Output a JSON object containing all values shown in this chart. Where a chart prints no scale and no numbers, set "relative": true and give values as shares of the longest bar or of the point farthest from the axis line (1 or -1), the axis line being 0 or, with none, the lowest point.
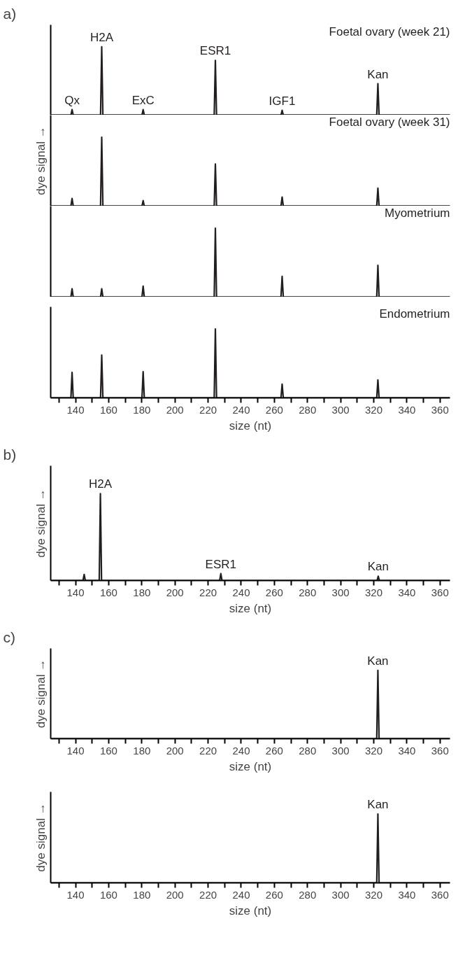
{
  "chart_data": [
    {
      "type": "line",
      "relative": true,
      "title": "Foetal ovary (week 21)",
      "tick_labels": false,
      "xlim": [
        125,
        366
      ],
      "annotations": [
        "a)",
        {
          "text": "Qx",
          "x": 137.9,
          "y": 0.08
        },
        {
          "text": "H2A",
          "x": 155.8,
          "y": 1
        },
        {
          "text": "ExC",
          "x": 180.8,
          "y": 0.08
        },
        {
          "text": "ESR1",
          "x": 224.4,
          "y": 0.8
        },
        {
          "text": "IGF1",
          "x": 264.7,
          "y": 0.07
        },
        {
          "text": "Kan",
          "x": 322.5,
          "y": 0.46
        }
      ],
      "series": [
        {
          "color": "#231f20",
          "x": [
            125,
            137.2,
            137.9,
            138.6,
            155.1,
            155.8,
            156.5,
            180.1,
            180.8,
            181.5,
            223.7,
            224.4,
            225.1,
            264.0,
            264.7,
            265.4,
            321.8,
            322.5,
            323.2,
            366
          ],
          "values": [
            0,
            0,
            0.08,
            0,
            0,
            1,
            0,
            0,
            0.08,
            0,
            0,
            0.8,
            0,
            0,
            0.07,
            0,
            0,
            0.46,
            0,
            0
          ]
        }
      ]
    },
    {
      "type": "line",
      "relative": true,
      "title": "Foetal ovary (week 31)",
      "ylabel": "dye signal →",
      "tick_labels": false,
      "xlim": [
        125,
        366
      ],
      "series": [
        {
          "color": "#231f20",
          "x": [
            125,
            137.2,
            137.9,
            138.6,
            155.1,
            155.8,
            156.5,
            180.1,
            180.8,
            181.5,
            223.7,
            224.4,
            225.1,
            264.0,
            264.7,
            265.4,
            321.8,
            322.5,
            323.2,
            366
          ],
          "values": [
            0,
            0,
            0.11,
            0,
            0,
            1,
            0,
            0,
            0.08,
            0,
            0,
            0.61,
            0,
            0,
            0.13,
            0,
            0,
            0.26,
            0,
            0
          ]
        }
      ]
    },
    {
      "type": "line",
      "relative": true,
      "title": "Myometrium",
      "tick_labels": false,
      "xlim": [
        125,
        366
      ],
      "series": [
        {
          "color": "#231f20",
          "x": [
            125,
            137.2,
            137.9,
            138.6,
            155.1,
            155.8,
            156.5,
            180.1,
            180.8,
            181.5,
            223.7,
            224.4,
            225.1,
            264.0,
            264.7,
            265.4,
            321.8,
            322.5,
            323.2,
            366
          ],
          "values": [
            0,
            0,
            0.12,
            0,
            0,
            0.12,
            0,
            0,
            0.16,
            0,
            0,
            1,
            0,
            0,
            0.3,
            0,
            0,
            0.46,
            0,
            0
          ]
        }
      ]
    },
    {
      "type": "line",
      "relative": true,
      "title": "Endometrium",
      "xlabel": "size (nt)",
      "tick_labels": "x",
      "xlim": [
        125,
        366
      ],
      "xticks": [
        {
          "value": 130,
          "label": null
        },
        140,
        {
          "value": 150,
          "label": null
        },
        160,
        {
          "value": 170,
          "label": null
        },
        180,
        {
          "value": 190,
          "label": null
        },
        200,
        {
          "value": 210,
          "label": null
        },
        220,
        {
          "value": 230,
          "label": null
        },
        240,
        {
          "value": 250,
          "label": null
        },
        260,
        {
          "value": 270,
          "label": null
        },
        280,
        {
          "value": 290,
          "label": null
        },
        300,
        {
          "value": 310,
          "label": null
        },
        320,
        {
          "value": 330,
          "label": null
        },
        340,
        {
          "value": 350,
          "label": null
        },
        360
      ],
      "series": [
        {
          "color": "#231f20",
          "x": [
            125,
            137.2,
            137.9,
            138.6,
            155.1,
            155.8,
            156.5,
            180.1,
            180.8,
            181.5,
            223.7,
            224.4,
            225.1,
            264.0,
            264.7,
            265.4,
            321.8,
            322.5,
            323.2,
            366
          ],
          "values": [
            0,
            0,
            0.37,
            0,
            0,
            0.62,
            0,
            0,
            0.38,
            0,
            0,
            1,
            0,
            0,
            0.2,
            0,
            0,
            0.26,
            0,
            0
          ]
        }
      ]
    },
    {
      "type": "line",
      "relative": true,
      "ylabel": "dye signal →",
      "xlabel": "size (nt)",
      "tick_labels": "x",
      "xlim": [
        125,
        366
      ],
      "xticks": [
        {
          "value": 130,
          "label": null
        },
        140,
        {
          "value": 150,
          "label": null
        },
        160,
        {
          "value": 170,
          "label": null
        },
        180,
        {
          "value": 190,
          "label": null
        },
        200,
        {
          "value": 210,
          "label": null
        },
        220,
        {
          "value": 230,
          "label": null
        },
        240,
        {
          "value": 250,
          "label": null
        },
        260,
        {
          "value": 270,
          "label": null
        },
        280,
        {
          "value": 290,
          "label": null
        },
        300,
        {
          "value": 310,
          "label": null
        },
        320,
        {
          "value": 330,
          "label": null
        },
        340,
        {
          "value": 350,
          "label": null
        },
        360
      ],
      "annotations": [
        "b)",
        {
          "text": "H2A",
          "x": 155.0,
          "y": 1
        },
        {
          "text": "ESR1",
          "x": 227.7,
          "y": 0.08
        },
        {
          "text": "Kan",
          "x": 322.7,
          "y": 0.05
        }
      ],
      "series": [
        {
          "color": "#231f20",
          "x": [
            125,
            144.5,
            145.2,
            145.9,
            154.3,
            155.0,
            155.7,
            227.0,
            227.7,
            228.4,
            322.0,
            322.7,
            323.4,
            366
          ],
          "values": [
            0,
            0,
            0.07,
            0,
            0,
            1,
            0,
            0,
            0.08,
            0,
            0,
            0.05,
            0,
            0
          ]
        }
      ]
    },
    {
      "type": "line",
      "relative": true,
      "ylabel": "dye signal →",
      "xlabel": "size (nt)",
      "tick_labels": "x",
      "xlim": [
        125,
        366
      ],
      "xticks": [
        {
          "value": 130,
          "label": null
        },
        140,
        {
          "value": 150,
          "label": null
        },
        160,
        {
          "value": 170,
          "label": null
        },
        180,
        {
          "value": 190,
          "label": null
        },
        200,
        {
          "value": 210,
          "label": null
        },
        220,
        {
          "value": 230,
          "label": null
        },
        240,
        {
          "value": 250,
          "label": null
        },
        260,
        {
          "value": 270,
          "label": null
        },
        280,
        {
          "value": 290,
          "label": null
        },
        300,
        {
          "value": 310,
          "label": null
        },
        320,
        {
          "value": 330,
          "label": null
        },
        340,
        {
          "value": 350,
          "label": null
        },
        360
      ],
      "annotations": [
        "c)",
        {
          "text": "Kan",
          "x": 322.5,
          "y": 1
        }
      ],
      "series": [
        {
          "color": "#231f20",
          "x": [
            125,
            321.8,
            322.5,
            323.2,
            366
          ],
          "values": [
            0,
            0,
            1,
            0,
            0
          ]
        }
      ]
    },
    {
      "type": "line",
      "relative": true,
      "ylabel": "dye signal →",
      "xlabel": "size (nt)",
      "tick_labels": "x",
      "xlim": [
        125,
        366
      ],
      "xticks": [
        {
          "value": 130,
          "label": null
        },
        140,
        {
          "value": 150,
          "label": null
        },
        160,
        {
          "value": 170,
          "label": null
        },
        180,
        {
          "value": 190,
          "label": null
        },
        200,
        {
          "value": 210,
          "label": null
        },
        220,
        {
          "value": 230,
          "label": null
        },
        240,
        {
          "value": 250,
          "label": null
        },
        260,
        {
          "value": 270,
          "label": null
        },
        280,
        {
          "value": 290,
          "label": null
        },
        300,
        {
          "value": 310,
          "label": null
        },
        320,
        {
          "value": 330,
          "label": null
        },
        340,
        {
          "value": 350,
          "label": null
        },
        360
      ],
      "annotations": [
        {
          "text": "Kan",
          "x": 322.5,
          "y": 1
        }
      ],
      "series": [
        {
          "color": "#231f20",
          "x": [
            125,
            321.8,
            322.5,
            323.2,
            366
          ],
          "values": [
            0,
            0,
            1,
            0,
            0
          ]
        }
      ]
    }
  ]
}
